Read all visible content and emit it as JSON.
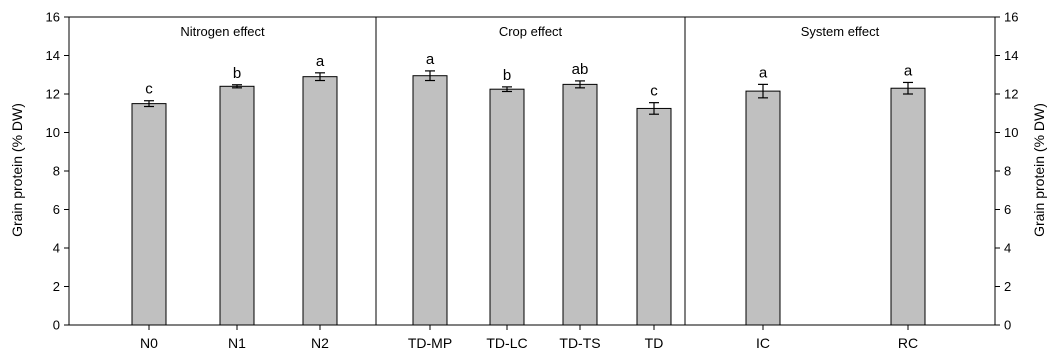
{
  "chart_data": {
    "type": "bar",
    "ylabel": "Grain protein (% DW)",
    "ylim": [
      0,
      16
    ],
    "yticks": [
      0,
      2,
      4,
      6,
      8,
      10,
      12,
      14,
      16
    ],
    "grid": false,
    "bar_color": "#c0c0c0",
    "panels": [
      {
        "title": "Nitrogen effect",
        "categories": [
          "N0",
          "N1",
          "N2"
        ],
        "values": [
          11.5,
          12.4,
          12.9
        ],
        "errors": [
          0.15,
          0.08,
          0.2
        ],
        "labels": [
          "c",
          "b",
          "a"
        ]
      },
      {
        "title": "Crop effect",
        "categories": [
          "TD-MP",
          "TD-LC",
          "TD-TS",
          "TD"
        ],
        "values": [
          12.95,
          12.25,
          12.5,
          11.25
        ],
        "errors": [
          0.25,
          0.12,
          0.18,
          0.3
        ],
        "labels": [
          "a",
          "b",
          "ab",
          "c"
        ]
      },
      {
        "title": "System effect",
        "categories": [
          "IC",
          "RC"
        ],
        "values": [
          12.15,
          12.3
        ],
        "errors": [
          0.35,
          0.3
        ],
        "labels": [
          "a",
          "a"
        ]
      }
    ]
  }
}
